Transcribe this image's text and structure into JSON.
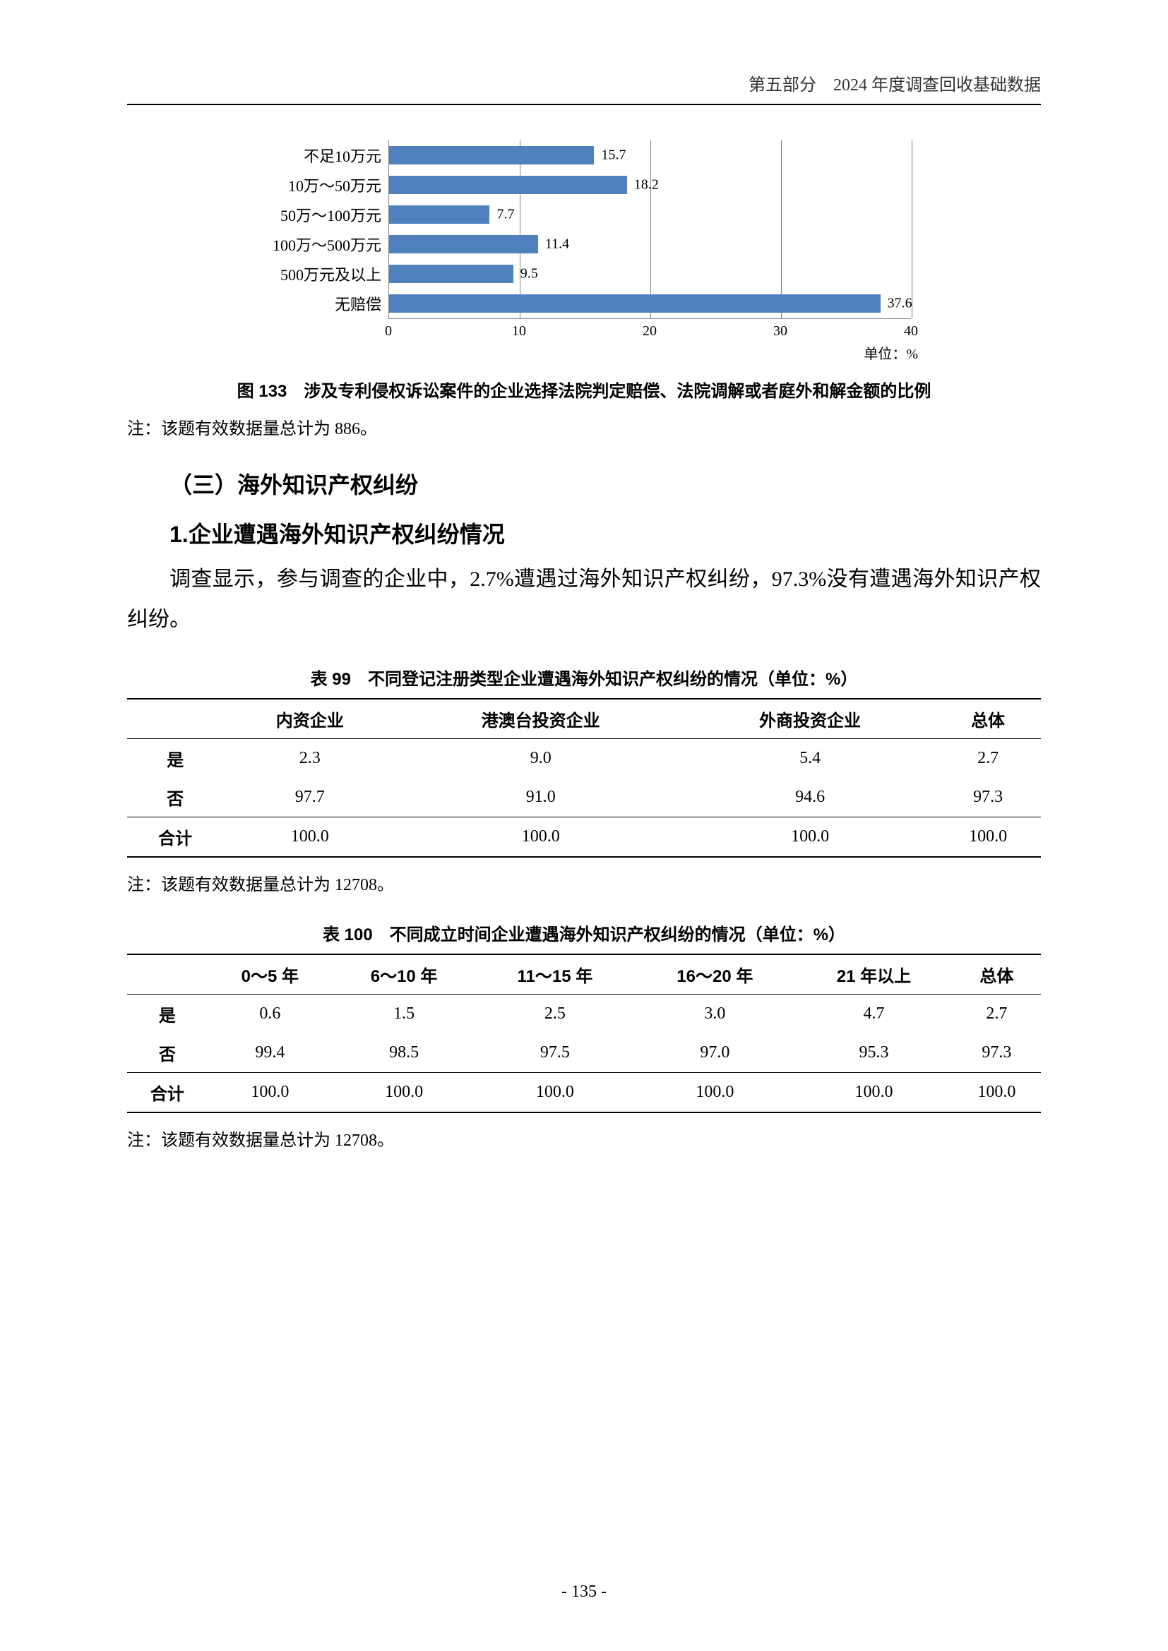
{
  "header": {
    "part": "第五部分",
    "title": "2024 年度调查回收基础数据"
  },
  "chart": {
    "type": "bar-horizontal",
    "bar_color": "#4f81bd",
    "grid_color": "#808080",
    "background": "#ffffff",
    "label_fontsize": 22,
    "value_fontsize": 20,
    "x_max": 40,
    "x_ticks": [
      0,
      10,
      20,
      30,
      40
    ],
    "unit_label": "单位：%",
    "categories": [
      "不足10万元",
      "10万～50万元",
      "50万～100万元",
      "100万～500万元",
      "500万元及以上",
      "无赔偿"
    ],
    "values": [
      15.7,
      18.2,
      7.7,
      11.4,
      9.5,
      37.6
    ]
  },
  "fig_caption": "图 133　涉及专利侵权诉讼案件的企业选择法院判定赔偿、法院调解或者庭外和解金额的比例",
  "fig_note": "注：该题有效数据量总计为 886。",
  "section_heading": "（三）海外知识产权纠纷",
  "sub_heading": "1.企业遭遇海外知识产权纠纷情况",
  "body_text": "调查显示，参与调查的企业中，2.7%遭遇过海外知识产权纠纷，97.3%没有遭遇海外知识产权纠纷。",
  "table99": {
    "caption": "表 99　不同登记注册类型企业遭遇海外知识产权纠纷的情况（单位：%）",
    "columns": [
      "",
      "内资企业",
      "港澳台投资企业",
      "外商投资企业",
      "总体"
    ],
    "rows": [
      [
        "是",
        "2.3",
        "9.0",
        "5.4",
        "2.7"
      ],
      [
        "否",
        "97.7",
        "91.0",
        "94.6",
        "97.3"
      ]
    ],
    "total_row": [
      "合计",
      "100.0",
      "100.0",
      "100.0",
      "100.0"
    ],
    "note": "注：该题有效数据量总计为 12708。"
  },
  "table100": {
    "caption": "表 100　不同成立时间企业遭遇海外知识产权纠纷的情况（单位：%）",
    "columns": [
      "",
      "0～5 年",
      "6～10 年",
      "11～15 年",
      "16～20 年",
      "21 年以上",
      "总体"
    ],
    "rows": [
      [
        "是",
        "0.6",
        "1.5",
        "2.5",
        "3.0",
        "4.7",
        "2.7"
      ],
      [
        "否",
        "99.4",
        "98.5",
        "97.5",
        "97.0",
        "95.3",
        "97.3"
      ]
    ],
    "total_row": [
      "合计",
      "100.0",
      "100.0",
      "100.0",
      "100.0",
      "100.0",
      "100.0"
    ],
    "note": "注：该题有效数据量总计为 12708。"
  },
  "page_number": "- 135 -"
}
